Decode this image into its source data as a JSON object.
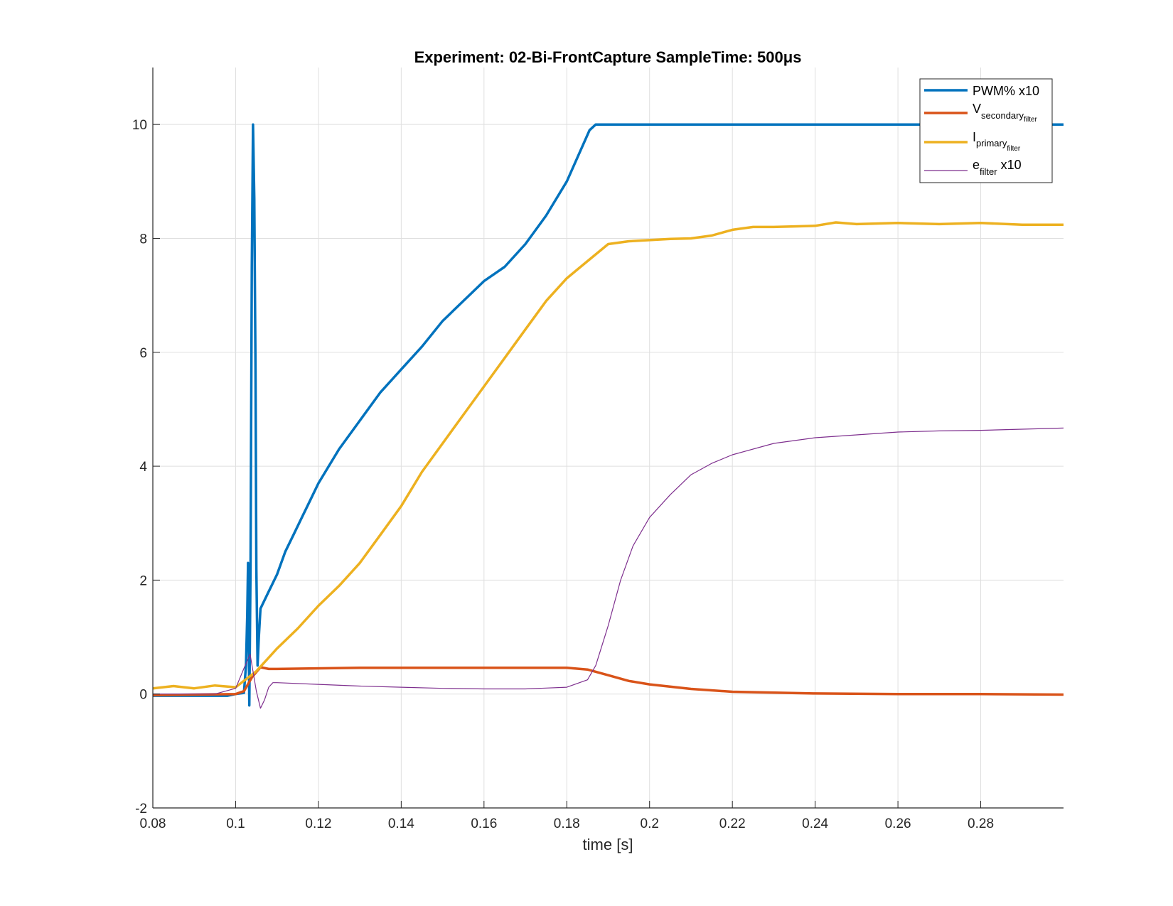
{
  "chart_data": {
    "type": "line",
    "title": "Experiment: 02-Bi-FrontCapture   SampleTime: 500μs",
    "xlabel": "time [s]",
    "ylabel": "",
    "xlim": [
      0.08,
      0.3
    ],
    "ylim": [
      -2,
      11
    ],
    "xticks": [
      0.08,
      0.1,
      0.12,
      0.14,
      0.16,
      0.18,
      0.2,
      0.22,
      0.24,
      0.26,
      0.28
    ],
    "xtick_labels": [
      "0.08",
      "0.1",
      "0.12",
      "0.14",
      "0.16",
      "0.18",
      "0.2",
      "0.22",
      "0.24",
      "0.26",
      "0.28"
    ],
    "yticks": [
      -2,
      0,
      2,
      4,
      6,
      8,
      10
    ],
    "ytick_labels": [
      "-2",
      "0",
      "2",
      "4",
      "6",
      "8",
      "10"
    ],
    "grid": true,
    "legend_position": "top-right",
    "series": [
      {
        "name": "PWM% x10",
        "color": "#0072BD",
        "width": 3.5,
        "x": [
          0.08,
          0.098,
          0.1,
          0.102,
          0.1025,
          0.1028,
          0.103,
          0.1033,
          0.1036,
          0.1039,
          0.1042,
          0.1045,
          0.1048,
          0.105,
          0.1053,
          0.1056,
          0.106,
          0.108,
          0.11,
          0.112,
          0.114,
          0.116,
          0.118,
          0.12,
          0.125,
          0.13,
          0.135,
          0.14,
          0.145,
          0.15,
          0.155,
          0.16,
          0.165,
          0.17,
          0.175,
          0.18,
          0.1855,
          0.187,
          0.2,
          0.3
        ],
        "y": [
          -0.03,
          -0.03,
          0.0,
          0.02,
          0.5,
          1.4,
          2.3,
          -0.2,
          2.2,
          7.5,
          10.0,
          8.7,
          5.7,
          2.2,
          0.5,
          1.0,
          1.5,
          1.8,
          2.1,
          2.5,
          2.8,
          3.1,
          3.4,
          3.7,
          4.3,
          4.8,
          5.3,
          5.7,
          6.1,
          6.55,
          6.9,
          7.25,
          7.5,
          7.9,
          8.4,
          9.0,
          9.9,
          10.0,
          10.0,
          10.0
        ]
      },
      {
        "name": "V_secondary_filter",
        "color": "#D95319",
        "width": 3.5,
        "x": [
          0.08,
          0.1,
          0.102,
          0.104,
          0.106,
          0.108,
          0.11,
          0.13,
          0.18,
          0.185,
          0.19,
          0.195,
          0.2,
          0.21,
          0.22,
          0.24,
          0.26,
          0.28,
          0.3
        ],
        "y": [
          -0.02,
          0.0,
          0.05,
          0.3,
          0.47,
          0.44,
          0.44,
          0.46,
          0.46,
          0.43,
          0.33,
          0.23,
          0.17,
          0.09,
          0.04,
          0.01,
          0.0,
          0.0,
          -0.01
        ],
        "label_main": "V",
        "label_sub": "secondary",
        "label_subsub": "filter"
      },
      {
        "name": "I_primary_filter",
        "color": "#EDB120",
        "width": 3.5,
        "x": [
          0.08,
          0.085,
          0.09,
          0.095,
          0.1,
          0.105,
          0.11,
          0.115,
          0.12,
          0.125,
          0.13,
          0.135,
          0.14,
          0.145,
          0.15,
          0.155,
          0.16,
          0.165,
          0.17,
          0.175,
          0.18,
          0.185,
          0.19,
          0.195,
          0.2,
          0.205,
          0.21,
          0.215,
          0.22,
          0.225,
          0.23,
          0.235,
          0.24,
          0.245,
          0.25,
          0.26,
          0.27,
          0.28,
          0.29,
          0.3
        ],
        "y": [
          0.1,
          0.14,
          0.1,
          0.15,
          0.12,
          0.4,
          0.8,
          1.15,
          1.55,
          1.9,
          2.3,
          2.8,
          3.3,
          3.9,
          4.4,
          4.9,
          5.4,
          5.9,
          6.4,
          6.9,
          7.3,
          7.6,
          7.9,
          7.95,
          7.97,
          7.99,
          8.0,
          8.05,
          8.15,
          8.2,
          8.2,
          8.21,
          8.22,
          8.28,
          8.25,
          8.27,
          8.25,
          8.27,
          8.24,
          8.24
        ],
        "label_main": "I",
        "label_sub": "primary",
        "label_subsub": "filter"
      },
      {
        "name": "e_filter x10",
        "color": "#7E2F8E",
        "width": 1.2,
        "x": [
          0.08,
          0.095,
          0.1,
          0.102,
          0.1035,
          0.105,
          0.106,
          0.107,
          0.108,
          0.109,
          0.11,
          0.12,
          0.13,
          0.14,
          0.15,
          0.16,
          0.17,
          0.18,
          0.185,
          0.187,
          0.19,
          0.193,
          0.196,
          0.2,
          0.205,
          0.21,
          0.215,
          0.22,
          0.23,
          0.24,
          0.25,
          0.26,
          0.27,
          0.28,
          0.29,
          0.3
        ],
        "y": [
          0.0,
          0.0,
          0.1,
          0.45,
          0.7,
          0.05,
          -0.25,
          -0.1,
          0.12,
          0.2,
          0.2,
          0.17,
          0.14,
          0.12,
          0.1,
          0.09,
          0.09,
          0.12,
          0.25,
          0.5,
          1.2,
          2.0,
          2.6,
          3.1,
          3.5,
          3.85,
          4.05,
          4.2,
          4.4,
          4.5,
          4.55,
          4.6,
          4.62,
          4.63,
          4.65,
          4.67
        ],
        "label_main": "e",
        "label_sub": "filter",
        "label_suffix": " x10"
      }
    ]
  }
}
